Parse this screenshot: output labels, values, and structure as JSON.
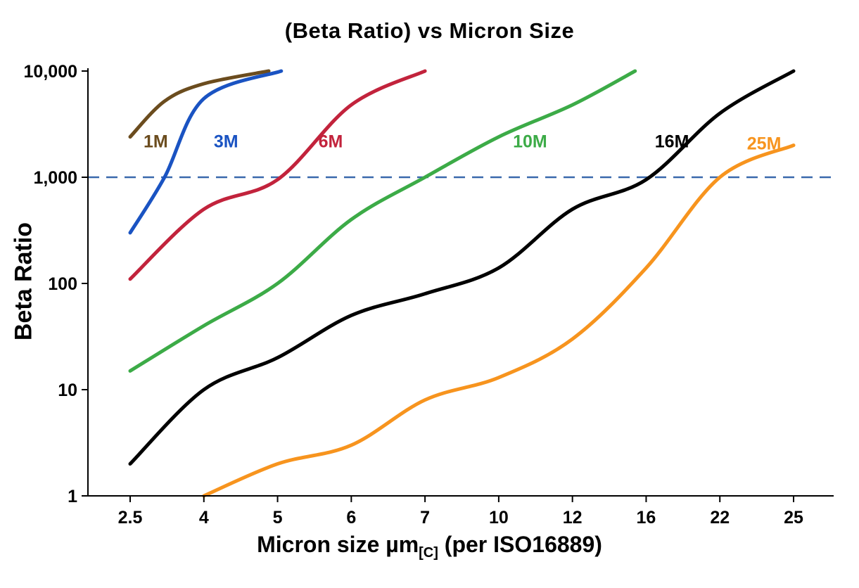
{
  "title": "(Beta Ratio) vs Micron Size",
  "axes": {
    "y_label": "Beta Ratio",
    "x_label_prefix": "Micron size µm",
    "x_label_sub": "[C]",
    "x_label_suffix": " (per ISO16889)"
  },
  "chart_data": {
    "type": "line",
    "title": "(Beta Ratio) vs Micron Size",
    "xlabel": "Micron size µm[C] (per ISO16889)",
    "ylabel": "Beta Ratio",
    "x_scale": "category",
    "y_scale": "log",
    "x_ticks": [
      2.5,
      4,
      5,
      6,
      7,
      10,
      12,
      16,
      22,
      25
    ],
    "x_tick_labels": [
      "2.5",
      "4",
      "5",
      "6",
      "7",
      "10",
      "12",
      "16",
      "22",
      "25"
    ],
    "y_ticks": [
      1,
      10,
      100,
      1000,
      10000
    ],
    "y_tick_labels": [
      "1",
      "10",
      "100",
      "1,000",
      "10,000"
    ],
    "ylim": [
      1,
      10000
    ],
    "grid": false,
    "legend_position": "inline-labels",
    "reference_line": {
      "y": 1000,
      "color": "#3a69ac",
      "style": "dashed"
    },
    "series": [
      {
        "name": "1M",
        "color": "#6b4c1e",
        "points": [
          [
            2.5,
            2400
          ],
          [
            3.2,
            5200
          ],
          [
            4,
            7600
          ],
          [
            4.88,
            10000
          ]
        ],
        "label_at": [
          3.02,
          2200
        ]
      },
      {
        "name": "3M",
        "color": "#1a53c2",
        "points": [
          [
            2.5,
            300
          ],
          [
            3.2,
            1000
          ],
          [
            4,
            5500
          ],
          [
            5.05,
            10000
          ]
        ],
        "label_at": [
          4.3,
          2200
        ]
      },
      {
        "name": "6M",
        "color": "#c2233c",
        "points": [
          [
            2.5,
            110
          ],
          [
            4,
            500
          ],
          [
            5,
            950
          ],
          [
            6,
            4800
          ],
          [
            7,
            10000
          ]
        ],
        "label_at": [
          5.72,
          2200
        ]
      },
      {
        "name": "10M",
        "color": "#3cab47",
        "points": [
          [
            2.5,
            15
          ],
          [
            4,
            40
          ],
          [
            5,
            100
          ],
          [
            6,
            400
          ],
          [
            7,
            1000
          ],
          [
            10,
            2400
          ],
          [
            12,
            4800
          ],
          [
            15.4,
            10000
          ]
        ],
        "label_at": [
          10.85,
          2200
        ]
      },
      {
        "name": "16M",
        "color": "#000000",
        "points": [
          [
            2.5,
            2
          ],
          [
            4,
            10
          ],
          [
            5,
            20
          ],
          [
            6,
            50
          ],
          [
            7,
            80
          ],
          [
            10,
            140
          ],
          [
            12,
            500
          ],
          [
            16,
            950
          ],
          [
            22,
            4000
          ],
          [
            25,
            10000
          ]
        ],
        "label_at": [
          18.1,
          2200
        ]
      },
      {
        "name": "25M",
        "color": "#f7941e",
        "points": [
          [
            4,
            1
          ],
          [
            5,
            2
          ],
          [
            6,
            3
          ],
          [
            7,
            8
          ],
          [
            10,
            13
          ],
          [
            12,
            30
          ],
          [
            16,
            140
          ],
          [
            22,
            1000
          ],
          [
            25,
            2000
          ]
        ],
        "label_at": [
          23.8,
          2100
        ]
      }
    ]
  }
}
